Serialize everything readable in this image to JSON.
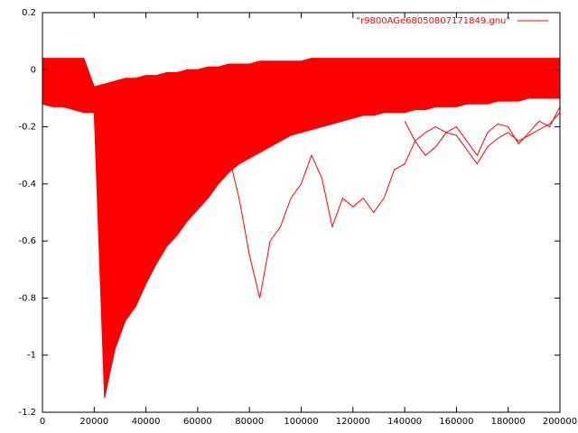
{
  "chart_data": {
    "type": "line",
    "x": [
      0,
      4000,
      8000,
      12000,
      16000,
      20000,
      24000,
      28000,
      32000,
      36000,
      40000,
      44000,
      48000,
      52000,
      56000,
      60000,
      64000,
      68000,
      72000,
      76000,
      80000,
      84000,
      88000,
      92000,
      96000,
      100000,
      104000,
      108000,
      112000,
      116000,
      120000,
      124000,
      128000,
      132000,
      136000,
      140000,
      144000,
      148000,
      152000,
      156000,
      160000,
      164000,
      168000,
      172000,
      176000,
      180000,
      184000,
      188000,
      192000,
      196000,
      200000
    ],
    "series": [
      {
        "name": "\"r9800AGe68050807171849.gnu\"",
        "color": "#ff0000",
        "values": [
          0.04,
          0.04,
          0.04,
          0.04,
          0.04,
          -0.06,
          -0.05,
          -0.04,
          -0.03,
          -0.03,
          -0.02,
          -0.02,
          -0.01,
          -0.01,
          0.0,
          0.0,
          0.01,
          0.01,
          0.02,
          0.02,
          0.02,
          0.03,
          0.03,
          0.03,
          0.03,
          0.03,
          0.04,
          0.04,
          0.04,
          0.04,
          0.04,
          0.04,
          0.04,
          0.04,
          0.04,
          0.04,
          0.04,
          0.04,
          0.04,
          0.04,
          0.04,
          0.04,
          0.04,
          0.04,
          0.04,
          0.04,
          0.04,
          0.04,
          0.04,
          0.04,
          0.04
        ]
      },
      {
        "color": "#ff0000",
        "values": [
          -0.12,
          -0.13,
          -0.13,
          -0.14,
          -0.15,
          -0.15,
          -1.15,
          -0.98,
          -0.88,
          -0.83,
          -0.75,
          -0.68,
          -0.62,
          -0.58,
          -0.53,
          -0.49,
          -0.45,
          -0.4,
          -0.36,
          -0.33,
          -0.31,
          -0.29,
          -0.27,
          -0.25,
          -0.23,
          -0.22,
          -0.21,
          -0.2,
          -0.19,
          -0.18,
          -0.17,
          -0.16,
          -0.16,
          -0.15,
          -0.15,
          -0.15,
          -0.14,
          -0.14,
          -0.13,
          -0.13,
          -0.13,
          -0.12,
          -0.12,
          -0.12,
          -0.11,
          -0.11,
          -0.11,
          -0.1,
          -0.1,
          -0.1,
          -0.1
        ]
      },
      {
        "color": "#ff0000",
        "values": [
          null,
          null,
          null,
          null,
          null,
          null,
          null,
          null,
          null,
          null,
          null,
          null,
          null,
          null,
          null,
          null,
          null,
          null,
          -0.3,
          -0.45,
          -0.65,
          -0.8,
          -0.6,
          -0.55,
          -0.45,
          -0.4,
          -0.3,
          -0.38,
          -0.55,
          -0.45,
          -0.48,
          -0.45,
          -0.5,
          -0.45,
          -0.35,
          -0.33,
          -0.25,
          -0.22,
          -0.2,
          -0.22,
          -0.23,
          -0.28,
          -0.33,
          -0.27,
          -0.24,
          -0.22,
          -0.25,
          -0.23,
          -0.21,
          -0.19,
          -0.15
        ]
      },
      {
        "color": "#ff0000",
        "values": [
          null,
          null,
          null,
          null,
          null,
          null,
          null,
          null,
          null,
          null,
          null,
          null,
          null,
          null,
          null,
          null,
          null,
          null,
          null,
          null,
          null,
          null,
          null,
          null,
          null,
          null,
          null,
          null,
          null,
          null,
          null,
          null,
          null,
          null,
          null,
          -0.18,
          -0.25,
          -0.3,
          -0.27,
          -0.22,
          -0.2,
          -0.25,
          -0.3,
          -0.22,
          -0.19,
          -0.2,
          -0.26,
          -0.22,
          -0.18,
          -0.2,
          -0.13
        ]
      }
    ],
    "fill_between": true,
    "xlim": [
      0,
      200000
    ],
    "xticks": [
      0,
      20000,
      40000,
      60000,
      80000,
      100000,
      120000,
      140000,
      160000,
      180000,
      200000
    ],
    "ylim": [
      -1.2,
      0.2
    ],
    "yticks": [
      0.2,
      0,
      -0.2,
      -0.4,
      -0.6,
      -0.8,
      -1,
      -1.2
    ],
    "grid": false,
    "legend": "top-right"
  }
}
